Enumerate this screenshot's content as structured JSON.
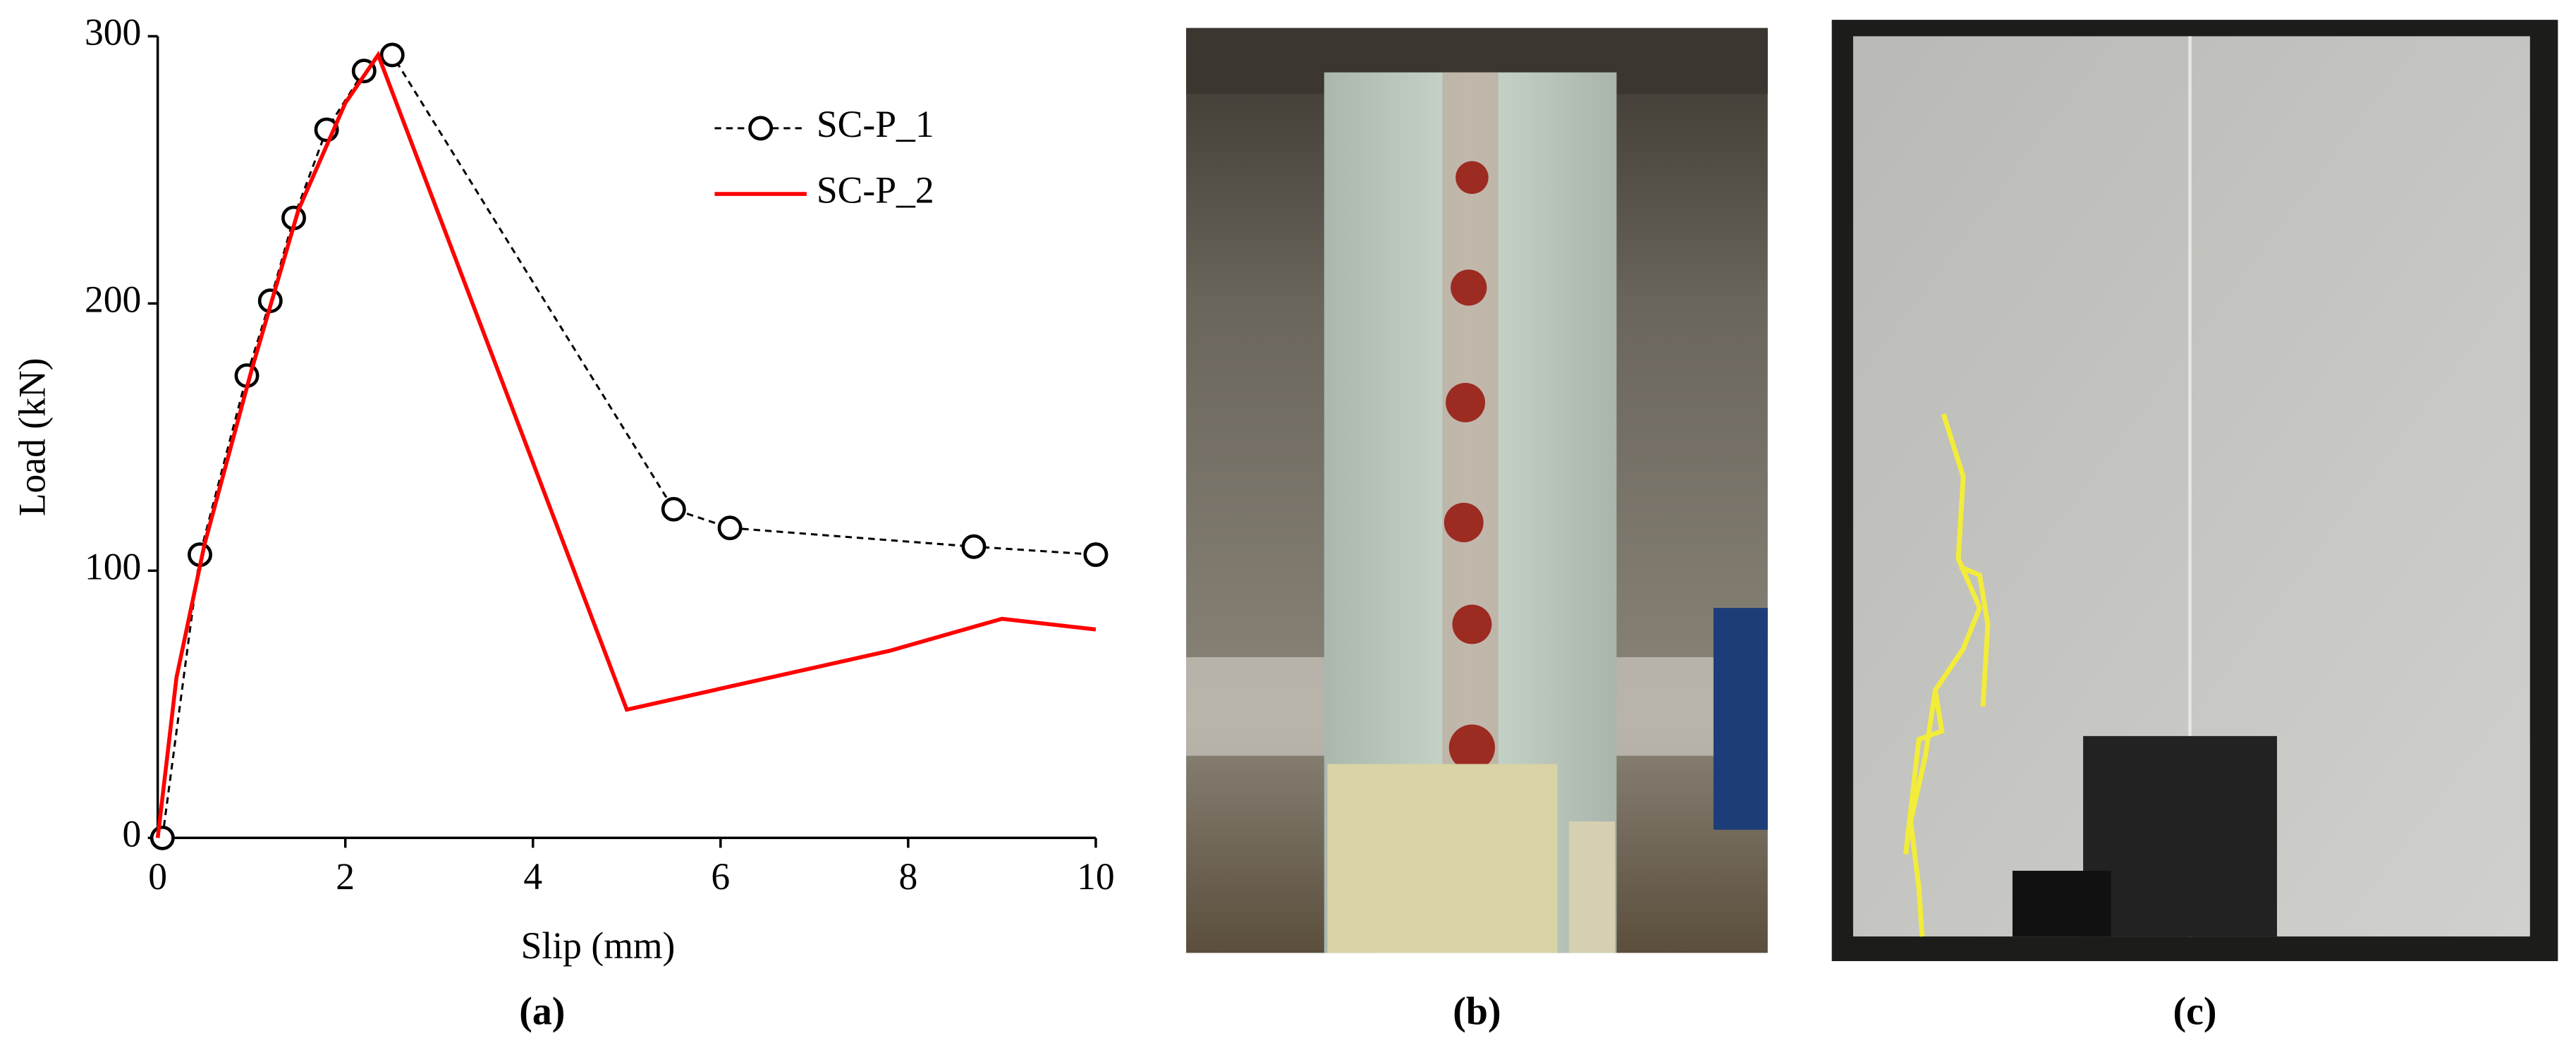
{
  "chart_data": {
    "type": "line",
    "x_label": "Slip (mm)",
    "y_label": "Load (kN)",
    "xlim": [
      0,
      10
    ],
    "xticks": [
      0,
      2,
      4,
      6,
      8,
      10
    ],
    "ylim": [
      0,
      300
    ],
    "yticks": [
      0,
      100,
      200,
      300
    ],
    "legend": "upper right",
    "series": [
      {
        "name": "SC-P_1",
        "color": "#000000",
        "dashed": true,
        "markers": true,
        "x": [
          0.05,
          0.45,
          0.95,
          1.2,
          1.45,
          1.8,
          2.2,
          2.5,
          5.5,
          6.1,
          8.7,
          10
        ],
        "values": [
          0,
          106,
          173,
          201,
          232,
          265,
          287,
          293,
          123,
          116,
          109,
          106
        ]
      },
      {
        "name": "SC-P_2",
        "color": "#ff0000",
        "dashed": false,
        "markers": false,
        "x": [
          0,
          0.2,
          0.5,
          1,
          1.5,
          2,
          2.35,
          5,
          7.8,
          9,
          10
        ],
        "values": [
          0,
          60,
          110,
          175,
          235,
          275,
          293,
          48,
          70,
          82,
          78
        ]
      }
    ]
  },
  "panel_labels": [
    "(a)",
    "(b)",
    "(c)"
  ]
}
